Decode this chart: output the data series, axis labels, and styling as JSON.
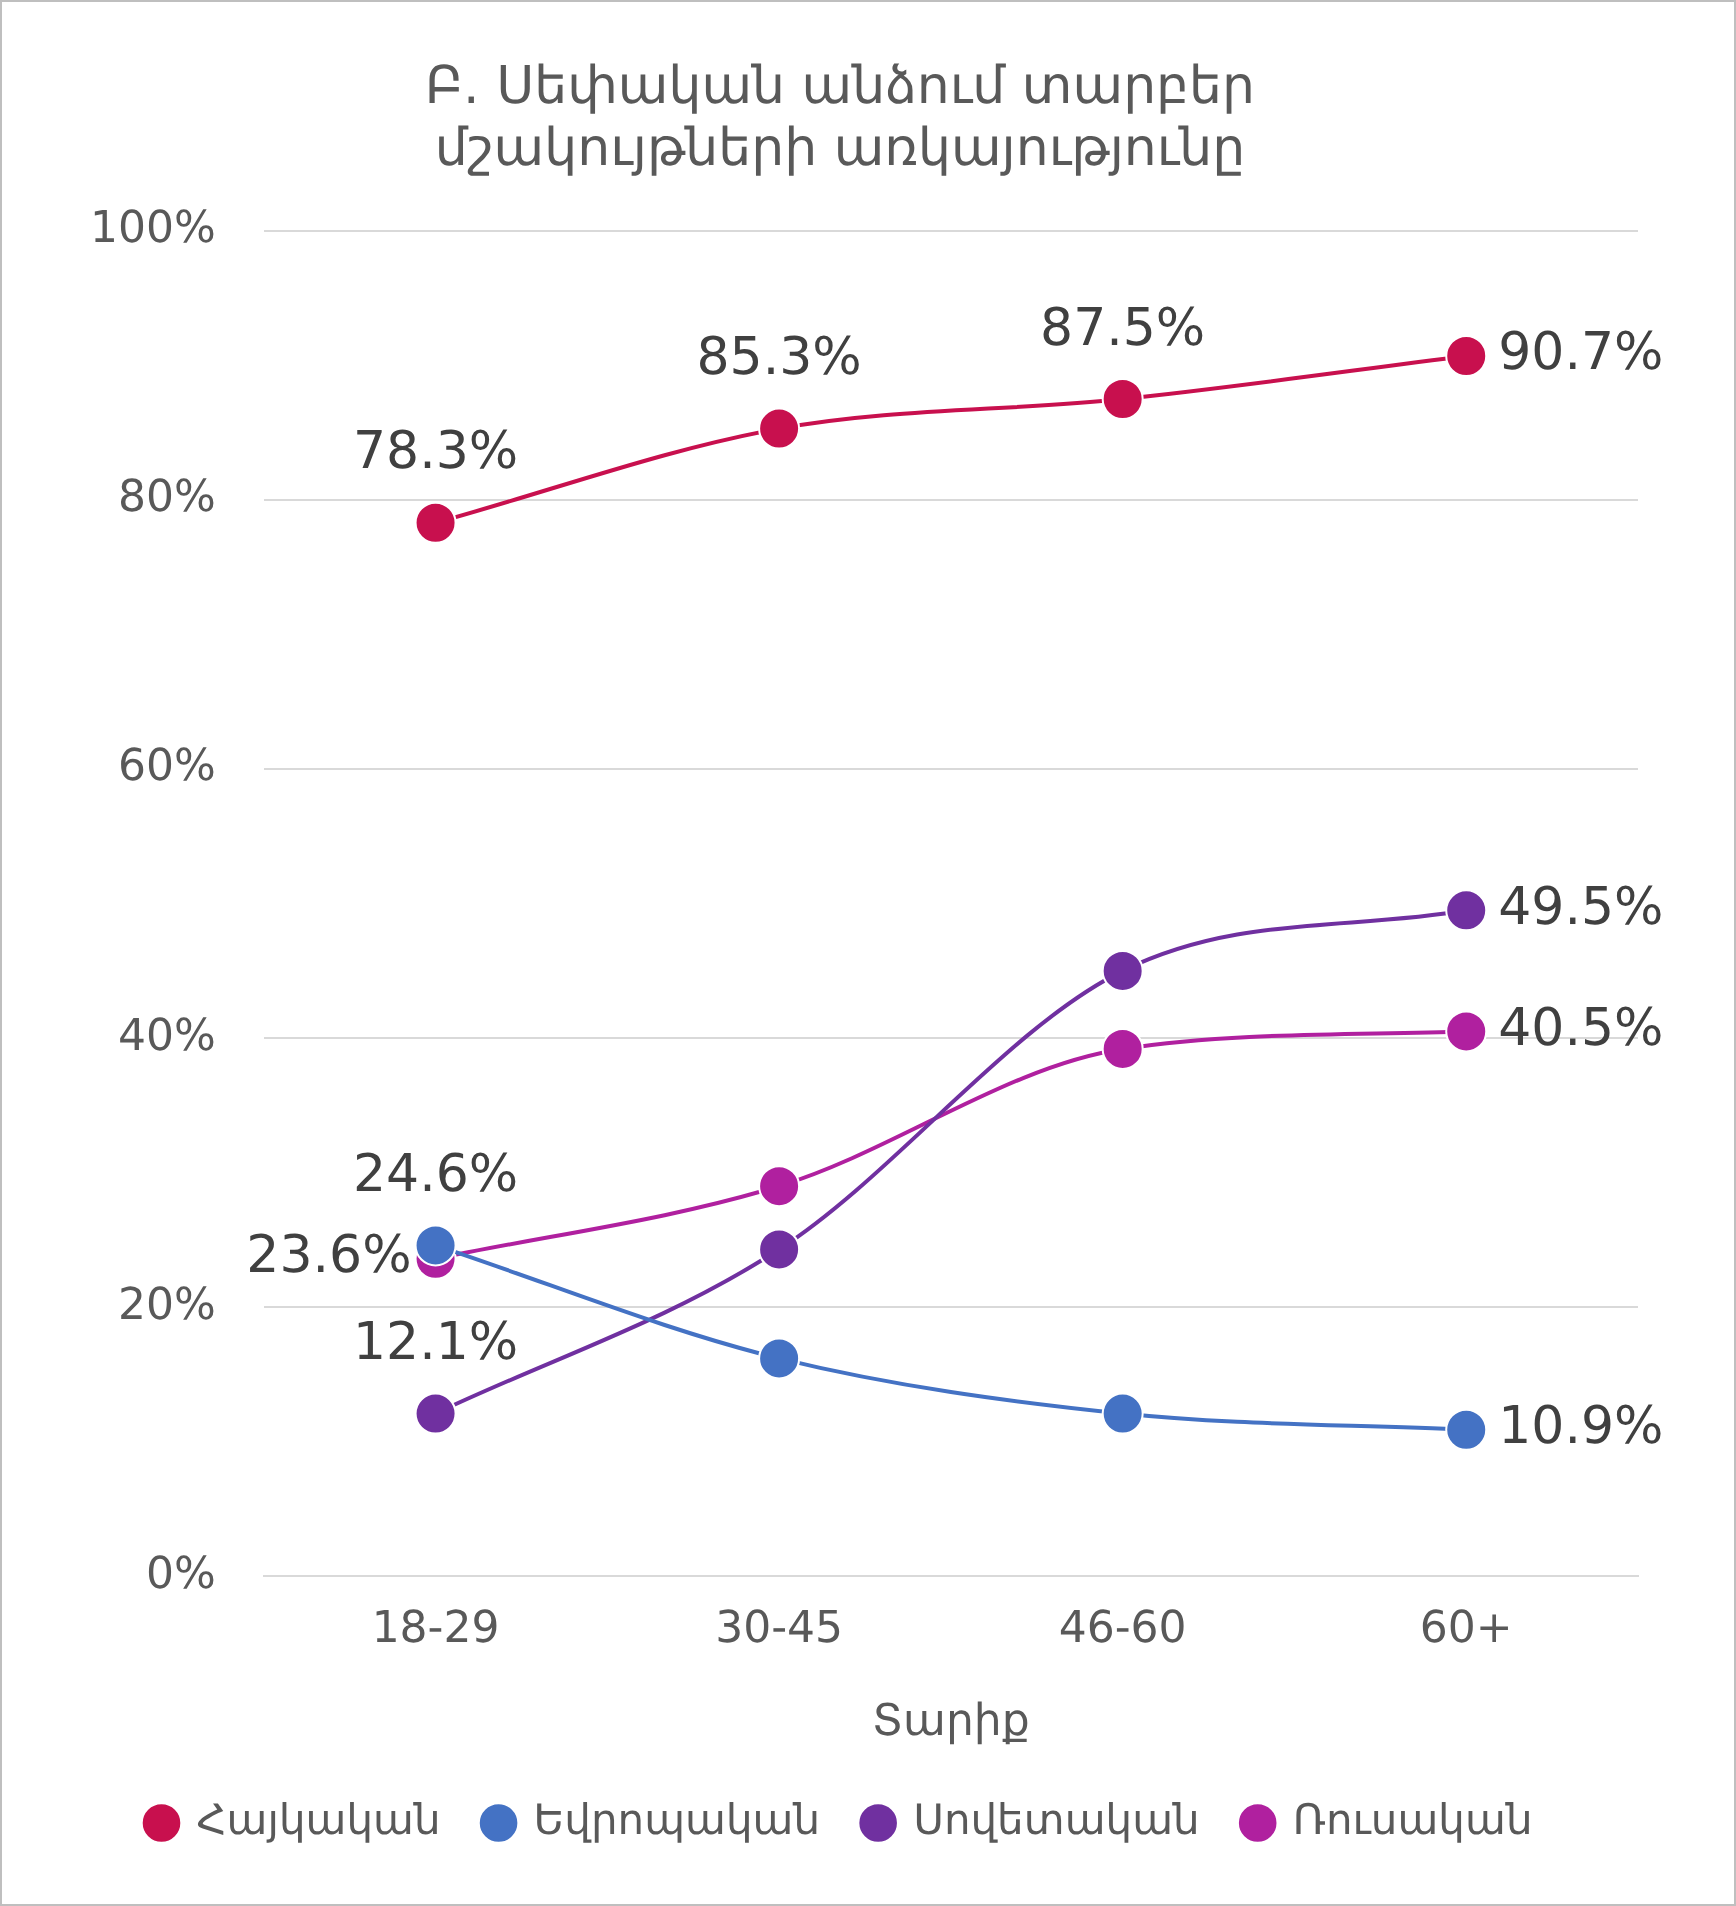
{
  "chart_data": {
    "type": "line",
    "title": "Բ. Սեփական անձում տարբեր մշակույթների առկայությունը",
    "xlabel": "Տարիք",
    "categories": [
      "18-29",
      "30-45",
      "46-60",
      "60+"
    ],
    "series": [
      {
        "name": "Հայկական",
        "color": "#c8104e",
        "values": [
          78.3,
          85.3,
          87.5,
          90.7
        ],
        "value_labels": [
          "78.3%",
          "85.3%",
          "87.5%",
          "90.7%"
        ]
      },
      {
        "name": "Եվրոպական",
        "color": "#4472c4",
        "values": [
          24.6,
          16.2,
          12.1,
          10.9
        ],
        "value_labels": [
          "24.6%",
          null,
          null,
          "10.9%"
        ]
      },
      {
        "name": "Սովետական",
        "color": "#7030a0",
        "values": [
          12.1,
          24.3,
          45.0,
          49.5
        ],
        "value_labels": [
          "12.1%",
          null,
          null,
          "49.5%"
        ]
      },
      {
        "name": "Ռուսական",
        "color": "#b0209f",
        "values": [
          23.6,
          29.0,
          39.2,
          40.5
        ],
        "value_labels": [
          "23.6%",
          null,
          null,
          "40.5%"
        ]
      }
    ],
    "ylim": [
      0,
      100
    ],
    "yticks": [
      {
        "value": 0,
        "label": "0%"
      },
      {
        "value": 20,
        "label": "20%"
      },
      {
        "value": 40,
        "label": "40%"
      },
      {
        "value": 60,
        "label": "60%"
      },
      {
        "value": 80,
        "label": "80%"
      },
      {
        "value": 100,
        "label": "100%"
      }
    ],
    "grid": "y",
    "legend": "bottom",
    "marker": "circle",
    "line_style": "solid"
  }
}
